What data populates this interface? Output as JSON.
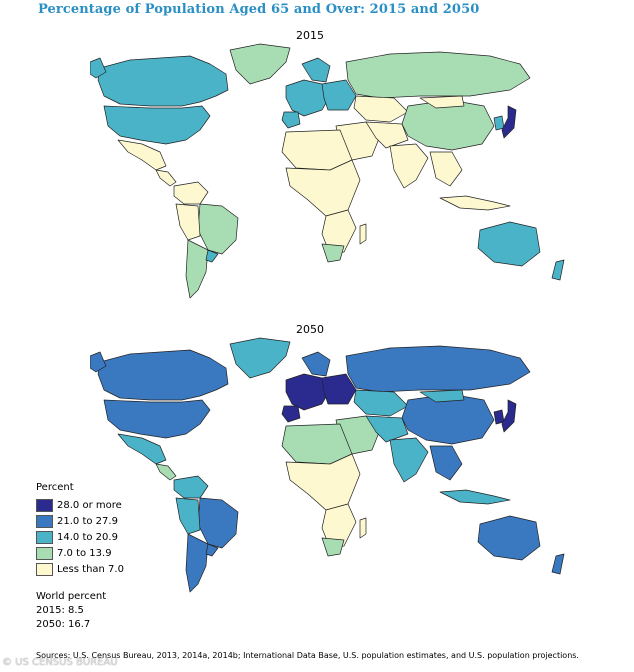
{
  "title": "Percentage of Population Aged 65 and Over: 2015 and 2050",
  "maps": [
    {
      "label": "2015"
    },
    {
      "label": "2050"
    }
  ],
  "legend": {
    "heading": "Percent",
    "items": [
      {
        "label": "28.0 or more",
        "color": "#2b2b8f"
      },
      {
        "label": "21.0 to 27.9",
        "color": "#3a78c0"
      },
      {
        "label": "14.0 to 20.9",
        "color": "#4ab3c8"
      },
      {
        "label": "7.0 to 13.9",
        "color": "#a8dcb3"
      },
      {
        "label": "Less than 7.0",
        "color": "#fdf8cf"
      }
    ]
  },
  "world_percent": {
    "heading": "World percent",
    "line_2015": "2015: 8.5",
    "line_2050": "2050: 16.7"
  },
  "sources": "Sources: U.S. Census Bureau, 2013, 2014a, 2014b; International Data Base, U.S. population estimates, and U.S. population projections.",
  "credit": "© US CENSUS BUREAU"
}
